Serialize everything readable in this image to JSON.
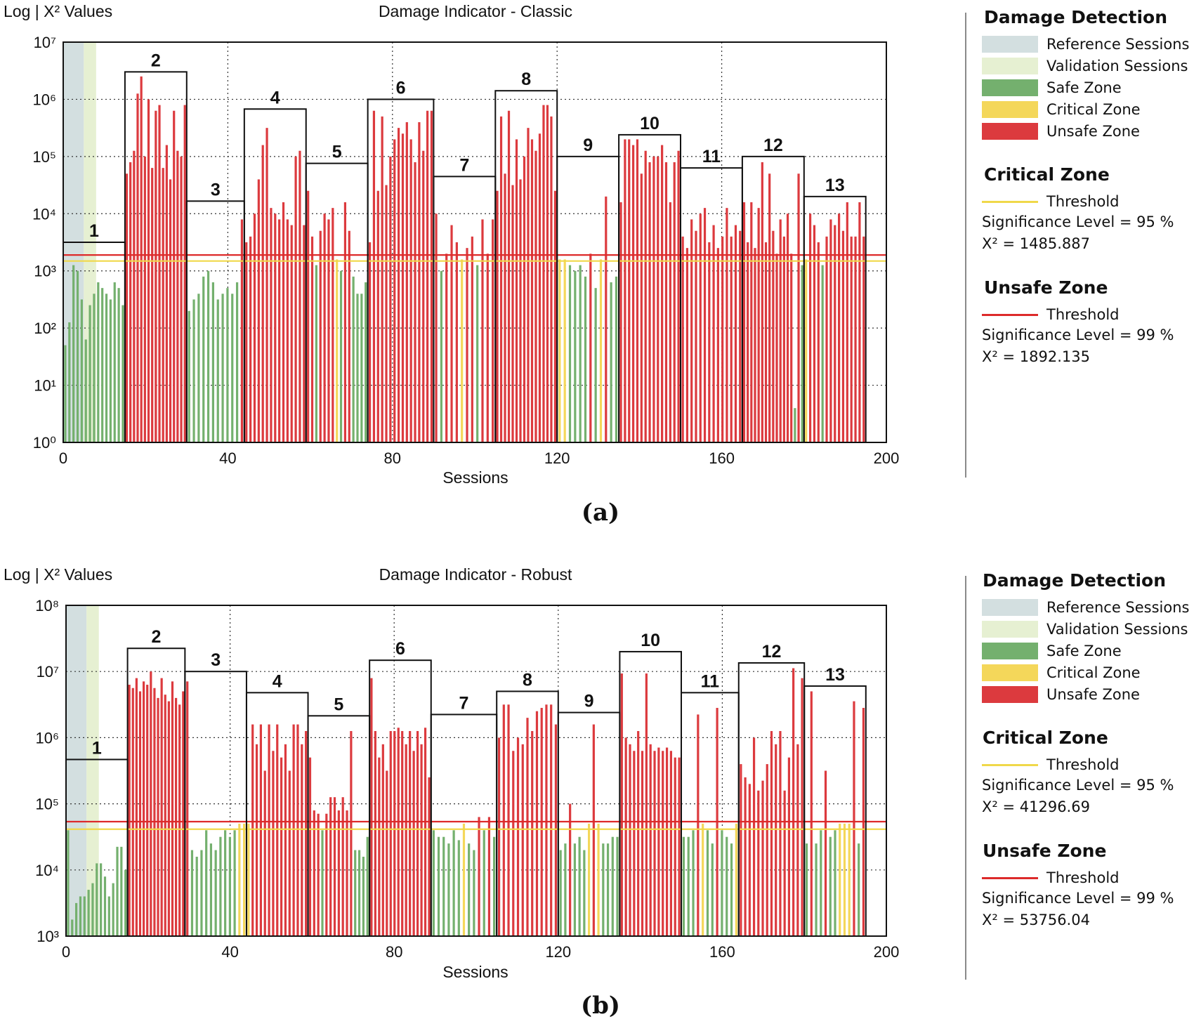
{
  "colors": {
    "reference": "#d3dfe0",
    "validation": "#e6f0d2",
    "safe": "#74b06e",
    "critical": "#f4d75a",
    "unsafe": "#dc3a3e",
    "critical_line": "#f0d84a",
    "unsafe_line": "#dd2a2a"
  },
  "chart_data": [
    {
      "type": "bar",
      "panel_label": "(a)",
      "title": "Damage Indicator - Classic",
      "ylabel": "Log | X² Values",
      "xlabel": "Sessions",
      "scale": "log10",
      "ylim_exp": [
        0,
        7
      ],
      "xlim": [
        0,
        200
      ],
      "x_ticks": [
        "0",
        "40",
        "80",
        "120",
        "160",
        "200"
      ],
      "y_tick_exponents": [
        "0",
        "1",
        "2",
        "3",
        "4",
        "5",
        "6",
        "7"
      ],
      "reference_sessions": [
        0,
        5
      ],
      "validation_sessions": [
        5,
        8
      ],
      "critical_threshold_exp": 3.172,
      "unsafe_threshold_exp": 3.277,
      "groups": [
        {
          "label": "1",
          "start": 0,
          "end": 15,
          "box_top_exp": 3.5
        },
        {
          "label": "2",
          "start": 15,
          "end": 30,
          "box_top_exp": 6.48
        },
        {
          "label": "3",
          "start": 30,
          "end": 44,
          "box_top_exp": 4.22
        },
        {
          "label": "4",
          "start": 44,
          "end": 59,
          "box_top_exp": 5.83
        },
        {
          "label": "5",
          "start": 59,
          "end": 74,
          "box_top_exp": 4.88
        },
        {
          "label": "6",
          "start": 74,
          "end": 90,
          "box_top_exp": 6.0
        },
        {
          "label": "7",
          "start": 90,
          "end": 105,
          "box_top_exp": 4.65
        },
        {
          "label": "8",
          "start": 105,
          "end": 120,
          "box_top_exp": 6.15
        },
        {
          "label": "9",
          "start": 120,
          "end": 135,
          "box_top_exp": 5.0
        },
        {
          "label": "10",
          "start": 135,
          "end": 150,
          "box_top_exp": 5.38
        },
        {
          "label": "11",
          "start": 150,
          "end": 165,
          "box_top_exp": 4.8
        },
        {
          "label": "12",
          "start": 165,
          "end": 180,
          "box_top_exp": 5.0
        },
        {
          "label": "13",
          "start": 180,
          "end": 195,
          "box_top_exp": 4.3
        }
      ],
      "group_values_exp": [
        [
          1.7,
          2.1,
          3.1,
          3.0,
          2.5,
          1.8,
          2.4,
          2.6,
          2.8,
          2.7,
          2.6,
          2.5,
          2.8,
          2.7,
          2.4
        ],
        [
          4.7,
          4.9,
          5.1,
          6.1,
          6.4,
          5.0,
          6.0,
          4.8,
          5.8,
          5.9,
          4.8,
          5.2,
          4.6,
          5.8,
          5.1,
          5.0,
          5.9
        ],
        [
          2.3,
          2.5,
          2.6,
          2.9,
          3.0,
          2.8,
          2.5,
          2.6,
          2.7,
          2.6,
          2.8,
          3.9
        ],
        [
          3.5,
          3.6,
          4.0,
          4.6,
          5.2,
          5.5,
          4.1,
          4.0,
          3.9,
          4.2,
          3.9,
          3.8,
          5.0,
          5.1,
          3.8
        ],
        [
          4.4,
          3.6,
          3.1,
          3.7,
          4.0,
          3.9,
          4.1,
          3.2,
          3.0,
          4.2,
          3.7,
          2.9,
          2.6,
          2.6,
          2.8
        ],
        [
          3.5,
          5.8,
          4.4,
          5.7,
          4.5,
          5.0,
          5.3,
          5.5,
          5.4,
          5.6,
          5.3,
          4.9,
          5.6,
          5.1,
          5.8,
          5.8
        ],
        [
          4.0,
          3.0,
          3.3,
          3.8,
          3.5,
          3.2,
          3.4,
          3.6,
          3.1,
          3.9,
          3.3,
          3.9
        ],
        [
          4.4,
          5.7,
          4.7,
          5.8,
          4.5,
          5.3,
          4.6,
          5.0,
          5.5,
          5.3,
          5.1,
          5.4,
          5.9,
          5.9,
          5.7,
          4.4
        ],
        [
          3.2,
          3.2,
          3.1,
          3.0,
          3.1,
          2.9,
          3.3,
          2.7,
          3.2,
          4.3,
          2.8,
          2.9
        ],
        [
          4.2,
          5.3,
          5.3,
          5.2,
          5.3,
          4.7,
          5.1,
          4.9,
          5.0,
          5.0,
          5.2,
          4.9,
          4.2,
          4.9,
          5.1
        ],
        [
          3.6,
          3.4,
          3.9,
          3.7,
          4.0,
          4.1,
          3.5,
          3.8,
          3.4,
          3.6,
          4.1,
          3.6,
          3.8,
          3.7
        ],
        [
          4.2,
          3.5,
          4.2,
          3.4,
          4.1,
          4.9,
          3.5,
          4.7,
          3.7,
          3.3,
          3.9,
          3.6,
          4.0,
          3.3,
          0.6,
          4.7,
          3.1
        ],
        [
          3.2,
          4.0,
          3.8,
          3.5,
          3.1,
          3.6,
          3.9,
          3.8,
          4.0,
          3.7,
          4.2,
          3.6,
          3.6,
          4.2,
          3.6
        ]
      ]
    },
    {
      "type": "bar",
      "panel_label": "(b)",
      "title": "Damage Indicator - Robust",
      "ylabel": "Log | X² Values",
      "xlabel": "Sessions",
      "scale": "log10",
      "ylim_exp": [
        3,
        8
      ],
      "xlim": [
        0,
        200
      ],
      "x_ticks": [
        "0",
        "40",
        "80",
        "120",
        "160",
        "200"
      ],
      "y_tick_exponents": [
        "3",
        "4",
        "5",
        "6",
        "7",
        "8"
      ],
      "reference_sessions": [
        0,
        5
      ],
      "validation_sessions": [
        5,
        8
      ],
      "critical_threshold_exp": 4.616,
      "unsafe_threshold_exp": 4.73,
      "groups": [
        {
          "label": "1",
          "start": 0,
          "end": 15,
          "box_top_exp": 5.67
        },
        {
          "label": "2",
          "start": 15,
          "end": 29,
          "box_top_exp": 7.35
        },
        {
          "label": "3",
          "start": 29,
          "end": 44,
          "box_top_exp": 7.0
        },
        {
          "label": "4",
          "start": 44,
          "end": 59,
          "box_top_exp": 6.68
        },
        {
          "label": "5",
          "start": 59,
          "end": 74,
          "box_top_exp": 6.33
        },
        {
          "label": "6",
          "start": 74,
          "end": 89,
          "box_top_exp": 7.17
        },
        {
          "label": "7",
          "start": 89,
          "end": 105,
          "box_top_exp": 6.35
        },
        {
          "label": "8",
          "start": 105,
          "end": 120,
          "box_top_exp": 6.7
        },
        {
          "label": "9",
          "start": 120,
          "end": 135,
          "box_top_exp": 6.38
        },
        {
          "label": "10",
          "start": 135,
          "end": 150,
          "box_top_exp": 7.3
        },
        {
          "label": "11",
          "start": 150,
          "end": 164,
          "box_top_exp": 6.68
        },
        {
          "label": "12",
          "start": 164,
          "end": 180,
          "box_top_exp": 7.13
        },
        {
          "label": "13",
          "start": 180,
          "end": 195,
          "box_top_exp": 6.78
        }
      ],
      "group_values_exp": [
        [
          4.6,
          3.25,
          3.5,
          3.6,
          3.6,
          3.7,
          3.8,
          4.1,
          4.1,
          3.9,
          3.6,
          3.8,
          4.35,
          4.35,
          4.0
        ],
        [
          6.8,
          6.75,
          6.9,
          6.7,
          6.85,
          6.8,
          7.0,
          6.75,
          6.6,
          6.9,
          6.65,
          6.55,
          6.85,
          6.6,
          6.5,
          6.7
        ],
        [
          6.85,
          4.3,
          4.2,
          4.3,
          4.6,
          4.4,
          4.3,
          4.5,
          4.6,
          4.5,
          4.6,
          4.7,
          4.7
        ],
        [
          4.7,
          6.2,
          5.9,
          6.2,
          5.5,
          6.2,
          5.8,
          6.2,
          5.7,
          5.9,
          5.5,
          6.2,
          6.2,
          5.9,
          6.1
        ],
        [
          5.7,
          4.9,
          4.85,
          4.6,
          4.85,
          5.1,
          5.1,
          4.9,
          5.1,
          4.9,
          6.1,
          4.3,
          4.3,
          4.2,
          4.5
        ],
        [
          6.9,
          6.1,
          5.7,
          5.9,
          5.5,
          6.1,
          6.1,
          6.15,
          6.1,
          5.9,
          6.1,
          5.8,
          6.1,
          5.9,
          6.15,
          5.4
        ],
        [
          4.6,
          4.5,
          4.5,
          4.4,
          4.6,
          4.45,
          4.7,
          4.4,
          4.3,
          4.8,
          4.6,
          4.8,
          4.5
        ],
        [
          6.0,
          6.5,
          6.5,
          5.8,
          6.0,
          5.9,
          6.3,
          6.1,
          6.4,
          6.45,
          6.5,
          6.5,
          6.2
        ],
        [
          4.3,
          4.4,
          5.0,
          4.4,
          4.5,
          4.3,
          4.7,
          6.2,
          4.7,
          4.4,
          4.4,
          4.5,
          4.5
        ],
        [
          6.97,
          6.0,
          5.9,
          5.8,
          6.1,
          5.8,
          6.97,
          5.9,
          5.8,
          5.85,
          5.8,
          5.85,
          5.8,
          5.7,
          5.7
        ],
        [
          4.5,
          4.5,
          4.6,
          6.35,
          4.7,
          4.6,
          4.4,
          6.45,
          4.6,
          4.5,
          4.4,
          4.7
        ],
        [
          5.6,
          5.4,
          5.3,
          6.0,
          5.2,
          5.35,
          5.6,
          6.1,
          5.9,
          6.1,
          5.2,
          5.7,
          7.05,
          5.9,
          6.9
        ],
        [
          4.4,
          6.7,
          4.4,
          4.6,
          5.5,
          4.5,
          4.6,
          4.7,
          4.7,
          4.7,
          6.55,
          4.4,
          6.45
        ]
      ]
    }
  ],
  "legends": [
    {
      "title": "Damage Detection",
      "items": [
        "Reference Sessions",
        "Validation Sessions",
        "Safe Zone",
        "Critical Zone",
        "Unsafe Zone"
      ],
      "critical": {
        "title": "Critical Zone",
        "line_label": "Threshold",
        "sig": "Significance Level = 95 %",
        "x2": "X² = 1485.887"
      },
      "unsafe": {
        "title": "Unsafe Zone",
        "line_label": "Threshold",
        "sig": "Significance Level = 99 %",
        "x2": "X² = 1892.135"
      }
    },
    {
      "title": "Damage Detection",
      "items": [
        "Reference Sessions",
        "Validation Sessions",
        "Safe Zone",
        "Critical Zone",
        "Unsafe Zone"
      ],
      "critical": {
        "title": "Critical Zone",
        "line_label": "Threshold",
        "sig": "Significance Level = 95 %",
        "x2": "X² = 41296.69"
      },
      "unsafe": {
        "title": "Unsafe Zone",
        "line_label": "Threshold",
        "sig": "Significance Level = 99 %",
        "x2": "X² = 53756.04"
      }
    }
  ]
}
